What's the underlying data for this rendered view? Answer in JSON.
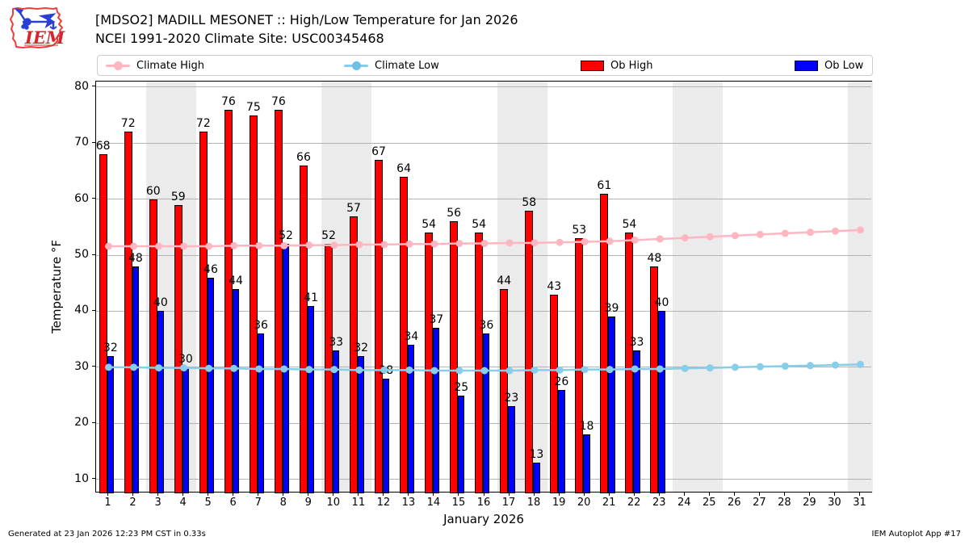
{
  "header": {
    "title_line1": "[MDSO2] MADILL MESONET :: High/Low Temperature for Jan 2026",
    "title_line2": "NCEI 1991-2020 Climate Site: USC00345468",
    "logo_text": "IEM"
  },
  "legend": {
    "items": [
      {
        "label": "Climate High",
        "type": "line",
        "color": "#ffb6c1"
      },
      {
        "label": "Climate Low",
        "type": "line",
        "color": "#87ceeb"
      },
      {
        "label": "Ob High",
        "type": "swatch",
        "color": "#ff0000"
      },
      {
        "label": "Ob Low",
        "type": "swatch",
        "color": "#0000ff"
      }
    ]
  },
  "footer": {
    "left": "Generated at 23 Jan 2026 12:23 PM CST in 0.33s",
    "right": "IEM Autoplot App #17"
  },
  "chart_data": {
    "type": "bar",
    "title": "[MDSO2] MADILL MESONET :: High/Low Temperature for Jan 2026",
    "subtitle": "NCEI 1991-2020 Climate Site: USC00345468",
    "xlabel": "January 2026",
    "ylabel": "Temperature °F",
    "ylim": [
      7.5,
      81
    ],
    "yticks": [
      10,
      20,
      30,
      40,
      50,
      60,
      70,
      80
    ],
    "days": [
      1,
      2,
      3,
      4,
      5,
      6,
      7,
      8,
      9,
      10,
      11,
      12,
      13,
      14,
      15,
      16,
      17,
      18,
      19,
      20,
      21,
      22,
      23,
      24,
      25,
      26,
      27,
      28,
      29,
      30,
      31
    ],
    "weekend_shaded_days": [
      3,
      4,
      10,
      11,
      17,
      18,
      24,
      25,
      31
    ],
    "grid": true,
    "legend_position": "top",
    "series": [
      {
        "name": "Ob High",
        "type": "bar",
        "color": "#ff0000",
        "values": [
          68,
          72,
          60,
          59,
          72,
          76,
          75,
          76,
          66,
          52,
          57,
          67,
          64,
          54,
          56,
          54,
          44,
          58,
          43,
          53,
          61,
          54,
          48
        ]
      },
      {
        "name": "Ob Low",
        "type": "bar",
        "color": "#0000ff",
        "values": [
          32,
          48,
          40,
          30,
          46,
          44,
          36,
          52,
          41,
          33,
          32,
          28,
          34,
          37,
          25,
          36,
          23,
          13,
          26,
          18,
          39,
          33,
          40
        ]
      },
      {
        "name": "Climate High",
        "type": "line",
        "color": "#ffb6c1",
        "values": [
          51.6,
          51.6,
          51.6,
          51.6,
          51.6,
          51.7,
          51.7,
          51.7,
          51.8,
          51.8,
          51.9,
          51.9,
          52.0,
          52.0,
          52.1,
          52.1,
          52.2,
          52.2,
          52.3,
          52.4,
          52.5,
          52.7,
          52.9,
          53.1,
          53.3,
          53.5,
          53.7,
          53.9,
          54.1,
          54.3,
          54.5
        ]
      },
      {
        "name": "Climate Low",
        "type": "line",
        "color": "#87ceeb",
        "values": [
          30.0,
          30.0,
          29.9,
          29.9,
          29.8,
          29.8,
          29.7,
          29.7,
          29.6,
          29.6,
          29.5,
          29.5,
          29.5,
          29.4,
          29.4,
          29.4,
          29.4,
          29.5,
          29.5,
          29.6,
          29.6,
          29.7,
          29.7,
          29.8,
          29.9,
          30.0,
          30.1,
          30.2,
          30.3,
          30.4,
          30.5
        ]
      }
    ]
  }
}
